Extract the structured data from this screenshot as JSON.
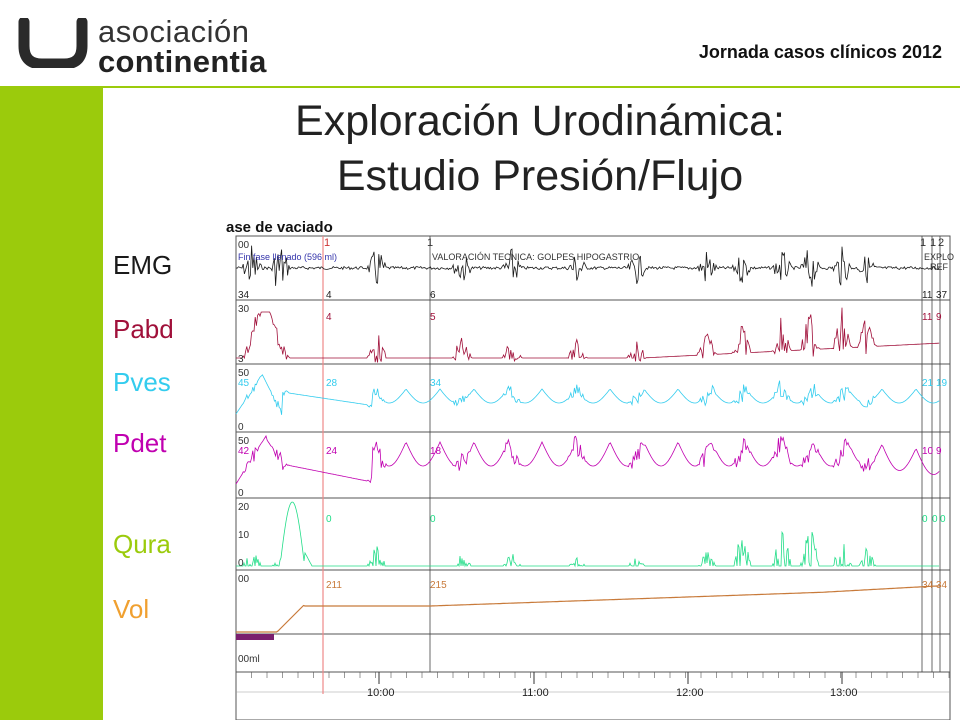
{
  "header": {
    "logo_line1": "asociación",
    "logo_line2": "continentia",
    "event": "Jornada casos clínicos 2012"
  },
  "slide": {
    "title_line1": "Exploración Urodinámica:",
    "title_line2": "Estudio Presión/Flujo"
  },
  "channels": [
    {
      "label": "EMG",
      "color": "#1a1a1a"
    },
    {
      "label": "Pabd",
      "color": "#a0103a"
    },
    {
      "label": "Pves",
      "color": "#33ccee"
    },
    {
      "label": "Pdet",
      "color": "#c000b0"
    },
    {
      "label": "Qura",
      "color": "#9bcb0c"
    },
    {
      "label": "Vol",
      "color": "#f0a030"
    }
  ],
  "tracing": {
    "header": "ase de vaciado",
    "markers": [
      "1",
      "1",
      "1",
      "1",
      "2"
    ],
    "annotation1": "Fin fase llenado (596 ml)",
    "annotation2": "VALORACIÓN TECNICA: GOLPES HIPOGASTRIO",
    "annotation3": "EXPLO",
    "annotation4": "REF",
    "emg_values": [
      "34",
      "4",
      "6",
      "11",
      "37"
    ],
    "pabd_values": [
      "30",
      "3",
      "4",
      "5",
      "11",
      "9"
    ],
    "pves_values": [
      "45",
      "28",
      "34",
      "21",
      "19"
    ],
    "pdet_values": [
      "42",
      "24",
      "18",
      "10",
      "9"
    ],
    "qura_values": [
      "0",
      "0",
      "0",
      "0",
      "0"
    ],
    "vol_values": [
      "211",
      "215",
      "34",
      "34"
    ],
    "scale_50": "50",
    "scale_20": "20",
    "scale_10": "10",
    "scale_0": "0",
    "scale_00": "00",
    "vol_unit": "00ml",
    "time_ticks": [
      "10:00",
      "11:00",
      "12:00",
      "13:00"
    ]
  },
  "colors": {
    "accent": "#9bcb0c",
    "emg": "#1a1a1a",
    "pabd": "#a0103a",
    "pves": "#33ccee",
    "pdet": "#c000b0",
    "qura": "#22dd88",
    "vol": "#c87a3a"
  }
}
